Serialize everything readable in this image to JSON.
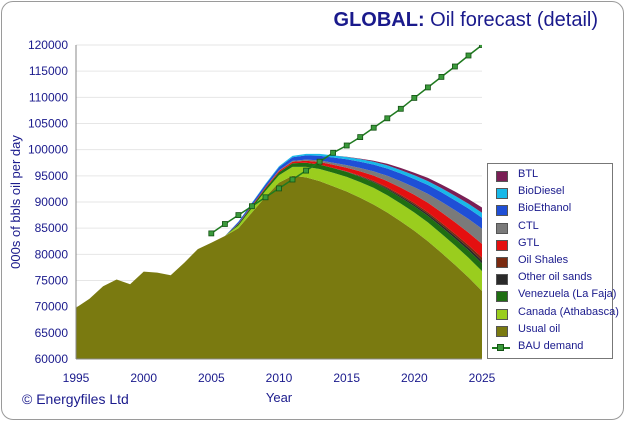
{
  "title": {
    "bold": "GLOBAL:",
    "rest": " Oil forecast (detail)"
  },
  "copyright": "© Energyfiles Ltd",
  "colors": {
    "usual_oil": "#7a7a10",
    "canada": "#9acd1e",
    "venezuela": "#1f6e12",
    "other_oil_sands": "#2a2a2a",
    "oil_shales": "#7a2a10",
    "gtl": "#e41010",
    "ctl": "#7a7a7a",
    "bioethanol": "#1f4fd6",
    "biodiesel": "#18b8e8",
    "btl": "#7a1f55",
    "bau": "#1f7a1f",
    "axis_text": "#1a1a8c"
  },
  "chart_data": {
    "type": "area",
    "title": "GLOBAL: Oil forecast (detail)",
    "xlabel": "Year",
    "ylabel": "000s of bbls oil per day",
    "xlim": [
      1995,
      2025
    ],
    "ylim": [
      60000,
      120000
    ],
    "x_ticks": [
      1995,
      2000,
      2005,
      2010,
      2015,
      2020,
      2025
    ],
    "y_ticks": [
      60000,
      65000,
      70000,
      75000,
      80000,
      85000,
      90000,
      95000,
      100000,
      105000,
      110000,
      115000,
      120000
    ],
    "x": [
      1995,
      1996,
      1997,
      1998,
      1999,
      2000,
      2001,
      2002,
      2003,
      2004,
      2005,
      2006,
      2007,
      2008,
      2009,
      2010,
      2011,
      2012,
      2013,
      2014,
      2015,
      2016,
      2017,
      2018,
      2019,
      2020,
      2021,
      2022,
      2023,
      2024,
      2025
    ],
    "series": [
      {
        "name": "Usual oil",
        "key": "usual_oil",
        "values": [
          69800,
          71500,
          73900,
          75200,
          74300,
          76700,
          76500,
          76000,
          78400,
          81000,
          82200,
          83500,
          85000,
          88000,
          91000,
          93700,
          95000,
          94700,
          94000,
          93000,
          92000,
          90800,
          89500,
          88000,
          86300,
          84500,
          82500,
          80300,
          78000,
          75600,
          73000
        ]
      },
      {
        "name": "Canada (Athabasca)",
        "key": "canada",
        "values": [
          0,
          0,
          0,
          0,
          0,
          0,
          0,
          0,
          0,
          0,
          0,
          0,
          500,
          800,
          1100,
          1400,
          1700,
          2000,
          2300,
          2600,
          2800,
          3000,
          3200,
          3300,
          3400,
          3500,
          3600,
          3650,
          3700,
          3750,
          3800
        ]
      },
      {
        "name": "Venezuela (La Faja)",
        "key": "venezuela",
        "values": [
          0,
          0,
          0,
          0,
          0,
          0,
          0,
          0,
          0,
          0,
          0,
          0,
          300,
          400,
          500,
          600,
          700,
          800,
          850,
          900,
          950,
          1000,
          1050,
          1100,
          1150,
          1200,
          1250,
          1300,
          1350,
          1400,
          1450
        ]
      },
      {
        "name": "Other oil sands",
        "key": "other_oil_sands",
        "values": [
          0,
          0,
          0,
          0,
          0,
          0,
          0,
          0,
          0,
          0,
          0,
          0,
          0,
          0,
          0,
          0,
          0,
          0,
          0,
          0,
          50,
          100,
          150,
          200,
          250,
          300,
          350,
          400,
          450,
          500,
          550
        ]
      },
      {
        "name": "Oil Shales",
        "key": "oil_shales",
        "values": [
          0,
          0,
          0,
          0,
          0,
          0,
          0,
          0,
          0,
          0,
          0,
          0,
          0,
          0,
          0,
          0,
          0,
          0,
          0,
          0,
          50,
          100,
          150,
          200,
          250,
          300,
          350,
          400,
          450,
          500,
          600
        ]
      },
      {
        "name": "GTL",
        "key": "gtl",
        "values": [
          0,
          0,
          0,
          0,
          0,
          0,
          0,
          0,
          0,
          0,
          0,
          0,
          100,
          150,
          200,
          250,
          300,
          400,
          500,
          600,
          700,
          850,
          1000,
          1200,
          1400,
          1600,
          1800,
          2000,
          2200,
          2400,
          2600
        ]
      },
      {
        "name": "CTL",
        "key": "ctl",
        "values": [
          0,
          0,
          0,
          0,
          0,
          0,
          0,
          0,
          0,
          0,
          0,
          0,
          0,
          0,
          50,
          100,
          150,
          200,
          300,
          400,
          500,
          650,
          800,
          1000,
          1200,
          1400,
          1700,
          2000,
          2300,
          2600,
          2900
        ]
      },
      {
        "name": "BioEthanol",
        "key": "bioethanol",
        "values": [
          0,
          0,
          0,
          0,
          0,
          0,
          0,
          0,
          0,
          0,
          0,
          0,
          300,
          400,
          500,
          600,
          700,
          800,
          900,
          1000,
          1100,
          1200,
          1300,
          1400,
          1500,
          1600,
          1700,
          1800,
          1900,
          2000,
          2100
        ]
      },
      {
        "name": "BioDiesel",
        "key": "biodiesel",
        "values": [
          0,
          0,
          0,
          0,
          0,
          0,
          0,
          0,
          0,
          0,
          0,
          0,
          50,
          100,
          150,
          200,
          250,
          300,
          350,
          400,
          450,
          500,
          550,
          600,
          650,
          700,
          750,
          800,
          850,
          900,
          950
        ]
      },
      {
        "name": "BTL",
        "key": "btl",
        "values": [
          0,
          0,
          0,
          0,
          0,
          0,
          0,
          0,
          0,
          0,
          0,
          0,
          0,
          0,
          0,
          0,
          0,
          0,
          0,
          0,
          50,
          100,
          200,
          300,
          400,
          500,
          600,
          700,
          800,
          900,
          1000
        ]
      }
    ],
    "lines": [
      {
        "name": "BAU demand",
        "key": "bau",
        "x_start": 2005,
        "values": [
          84000,
          85800,
          87500,
          89200,
          90900,
          92600,
          94300,
          96000,
          97700,
          99400,
          100800,
          102400,
          104200,
          106000,
          107800,
          109900,
          111900,
          113900,
          115900,
          118000,
          120000
        ]
      }
    ],
    "legend": {
      "placement": "right",
      "entries": [
        {
          "label": "BTL",
          "key": "btl",
          "kind": "area"
        },
        {
          "label": "BioDiesel",
          "key": "biodiesel",
          "kind": "area"
        },
        {
          "label": "BioEthanol",
          "key": "bioethanol",
          "kind": "area"
        },
        {
          "label": "CTL",
          "key": "ctl",
          "kind": "area"
        },
        {
          "label": "GTL",
          "key": "gtl",
          "kind": "area"
        },
        {
          "label": "Oil Shales",
          "key": "oil_shales",
          "kind": "area"
        },
        {
          "label": "Other oil sands",
          "key": "other_oil_sands",
          "kind": "area"
        },
        {
          "label": "Venezuela (La Faja)",
          "key": "venezuela",
          "kind": "area"
        },
        {
          "label": "Canada (Athabasca)",
          "key": "canada",
          "kind": "area"
        },
        {
          "label": "Usual oil",
          "key": "usual_oil",
          "kind": "area"
        },
        {
          "label": "BAU demand",
          "key": "bau",
          "kind": "line"
        }
      ]
    }
  }
}
